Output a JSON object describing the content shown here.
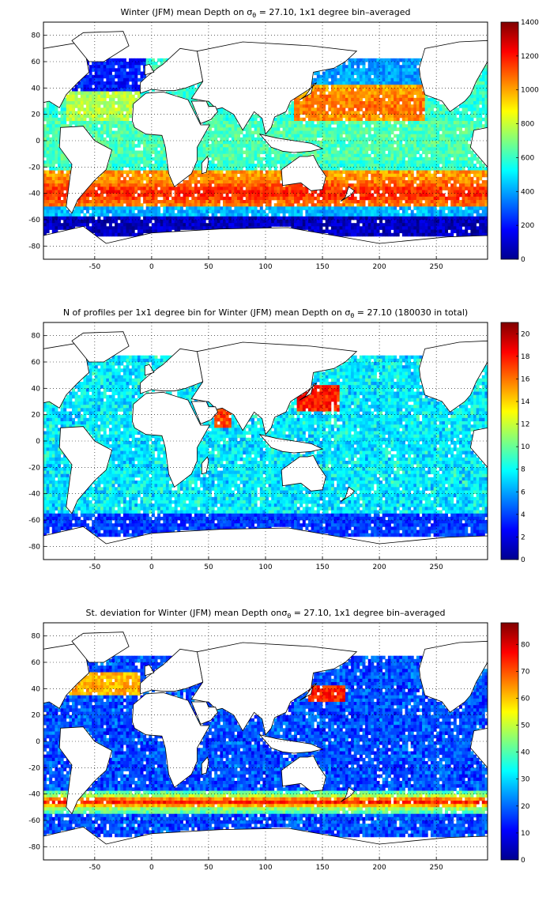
{
  "chart_data": [
    {
      "type": "heatmap",
      "title": "Winter (JFM) mean Depth on σθ = 27.10, 1x1 degree bin–averaged",
      "title_parts": {
        "pre": "Winter (JFM) mean Depth on σ",
        "sub": "θ",
        "post": " = 27.10, 1x1 degree bin–averaged"
      },
      "xticks": [
        "-50",
        "0",
        "50",
        "100",
        "150",
        "200",
        "250"
      ],
      "xtick_values": [
        -50,
        0,
        50,
        100,
        150,
        200,
        250
      ],
      "yticks": [
        "80",
        "60",
        "40",
        "20",
        "0",
        "-20",
        "-40",
        "-60",
        "-80"
      ],
      "ytick_values": [
        80,
        60,
        40,
        20,
        0,
        -20,
        -40,
        -60,
        -80
      ],
      "xlim": [
        -95,
        295
      ],
      "ylim": [
        -90,
        90
      ],
      "grid": true,
      "colormap": "jet",
      "colorbar": {
        "min": 0,
        "max": 1400,
        "ticks": [
          "0",
          "200",
          "400",
          "600",
          "800",
          "1000",
          "1200",
          "1400"
        ]
      },
      "field": "depth",
      "approx_regions": [
        {
          "region": "Subtropical North Pacific",
          "lat": [
            15,
            40
          ],
          "lon": [
            130,
            235
          ],
          "value": 1000
        },
        {
          "region": "Subtropical South Indian/Pacific",
          "lat": [
            -50,
            -25
          ],
          "lon": [
            20,
            280
          ],
          "value": 1100
        },
        {
          "region": "North Atlantic subpolar",
          "lat": [
            40,
            60
          ],
          "lon": [
            -65,
            -10
          ],
          "value": 150
        },
        {
          "region": "Equatorial oceans",
          "lat": [
            -15,
            15
          ],
          "lon": [
            -95,
            295
          ],
          "value": 600
        },
        {
          "region": "Southern Ocean south of 55S",
          "lat": [
            -75,
            -55
          ],
          "lon": [
            -95,
            295
          ],
          "value": 50
        }
      ]
    },
    {
      "type": "heatmap",
      "title": "N of profiles per 1x1 degree bin for Winter (JFM) mean Depth on σθ = 27.10 (180030 in total)",
      "title_parts": {
        "pre": "N of profiles per 1x1 degree bin for Winter (JFM) mean Depth on σ",
        "sub": "θ",
        "post": " = 27.10 (180030 in total)"
      },
      "xticks": [
        "-50",
        "0",
        "50",
        "100",
        "150",
        "200",
        "250"
      ],
      "xtick_values": [
        -50,
        0,
        50,
        100,
        150,
        200,
        250
      ],
      "yticks": [
        "80",
        "60",
        "40",
        "20",
        "0",
        "-20",
        "-40",
        "-60",
        "-80"
      ],
      "ytick_values": [
        80,
        60,
        40,
        20,
        0,
        -20,
        -40,
        -60,
        -80
      ],
      "xlim": [
        -95,
        295
      ],
      "ylim": [
        -90,
        90
      ],
      "grid": true,
      "colormap": "jet",
      "colorbar": {
        "min": 0,
        "max": 21,
        "ticks": [
          "0",
          "2",
          "4",
          "6",
          "8",
          "10",
          "12",
          "14",
          "16",
          "18",
          "20"
        ]
      },
      "field": "count",
      "approx_regions": [
        {
          "region": "Kuroshio region off Japan",
          "lat": [
            25,
            40
          ],
          "lon": [
            130,
            160
          ],
          "value": 20
        },
        {
          "region": "Arabian Sea",
          "lat": [
            10,
            25
          ],
          "lon": [
            55,
            70
          ],
          "value": 18
        },
        {
          "region": "Open ocean typical",
          "lat": [
            -60,
            60
          ],
          "lon": [
            -95,
            295
          ],
          "value": 7
        }
      ]
    },
    {
      "type": "heatmap",
      "title": "St. deviation for Winter (JFM) mean Depth onσθ = 27.10, 1x1 degree bin–averaged",
      "title_parts": {
        "pre": "St. deviation for Winter (JFM) mean Depth onσ",
        "sub": "θ",
        "post": " = 27.10, 1x1 degree bin–averaged"
      },
      "xticks": [
        "-50",
        "0",
        "50",
        "100",
        "150",
        "200",
        "250"
      ],
      "xtick_values": [
        -50,
        0,
        50,
        100,
        150,
        200,
        250
      ],
      "yticks": [
        "80",
        "60",
        "40",
        "20",
        "0",
        "-20",
        "-40",
        "-60",
        "-80"
      ],
      "ytick_values": [
        80,
        60,
        40,
        20,
        0,
        -20,
        -40,
        -60,
        -80
      ],
      "xlim": [
        -95,
        295
      ],
      "ylim": [
        -90,
        90
      ],
      "grid": true,
      "colormap": "jet",
      "colorbar": {
        "min": 0,
        "max": 88,
        "ticks": [
          "0",
          "10",
          "20",
          "30",
          "40",
          "50",
          "60",
          "70",
          "80"
        ]
      },
      "field": "std",
      "approx_regions": [
        {
          "region": "Gulf Stream / North Atlantic Current",
          "lat": [
            38,
            50
          ],
          "lon": [
            -75,
            -20
          ],
          "value": 75
        },
        {
          "region": "Kuroshio Extension",
          "lat": [
            33,
            40
          ],
          "lon": [
            140,
            165
          ],
          "value": 80
        },
        {
          "region": "Antarctic Circumpolar Current",
          "lat": [
            -55,
            -40
          ],
          "lon": [
            -95,
            295
          ],
          "value": 80
        },
        {
          "region": "Open ocean typical",
          "lat": [
            -30,
            30
          ],
          "lon": [
            -95,
            295
          ],
          "value": 15
        }
      ]
    }
  ]
}
